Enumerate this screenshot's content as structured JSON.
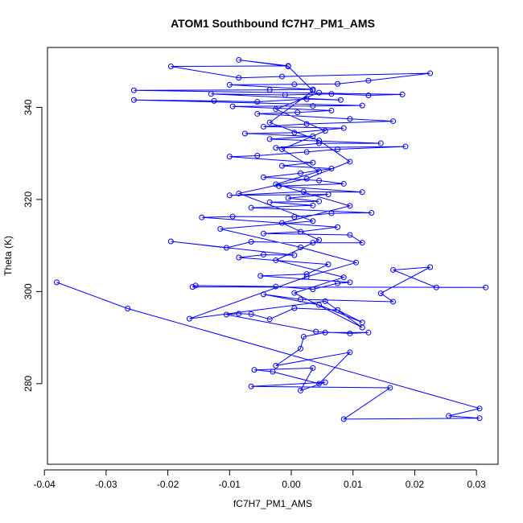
{
  "chart_data": {
    "type": "scatter",
    "title": "ATOM1 Southbound fC7H7_PM1_AMS",
    "xlabel": "fC7H7_PM1_AMS",
    "ylabel": "Theta (K)",
    "xlim": [
      -0.0395,
      0.0335
    ],
    "ylim": [
      262.5,
      353.0
    ],
    "x_ticks": [
      -0.04,
      -0.03,
      -0.02,
      -0.01,
      0.0,
      0.01,
      0.02,
      0.03
    ],
    "x_tick_labels": [
      "-0.04",
      "-0.03",
      "-0.02",
      "-0.01",
      "0.00",
      "0.01",
      "0.02",
      "0.03"
    ],
    "y_ticks": [
      280,
      300,
      320,
      340
    ],
    "y_tick_labels": [
      "280",
      "300",
      "320",
      "340"
    ],
    "grid": false,
    "legend": "none",
    "style": "points connected by lines (overplotted)",
    "color": "#0000ff",
    "series": [
      {
        "points": [
          [
            -0.038,
            302.0
          ],
          [
            -0.0265,
            296.3
          ],
          [
            0.0305,
            274.6
          ],
          [
            0.0255,
            273.0
          ],
          [
            0.0305,
            272.5
          ],
          [
            0.0085,
            272.3
          ],
          [
            0.016,
            279.1
          ],
          [
            -0.0065,
            279.4
          ],
          [
            0.0055,
            280.3
          ],
          [
            0.0015,
            278.5
          ],
          [
            0.0035,
            283.4
          ],
          [
            -0.006,
            283.0
          ],
          [
            -0.003,
            282.6
          ],
          [
            0.0045,
            280.0
          ],
          [
            0.0095,
            286.8
          ],
          [
            -0.0025,
            283.9
          ],
          [
            0.0015,
            287.6
          ],
          [
            0.002,
            290.2
          ],
          [
            0.0055,
            291.1
          ],
          [
            0.0125,
            291.1
          ],
          [
            0.0095,
            290.9
          ],
          [
            0.004,
            291.3
          ],
          [
            -0.0105,
            295.0
          ],
          [
            -0.0085,
            295.2
          ],
          [
            -0.0065,
            295.1
          ],
          [
            -0.0035,
            294.0
          ],
          [
            0.0005,
            296.4
          ],
          [
            0.0075,
            296.0
          ],
          [
            0.0115,
            293.3
          ],
          [
            0.0045,
            297.1
          ],
          [
            -0.0045,
            299.4
          ],
          [
            0.0015,
            298.3
          ],
          [
            0.0165,
            297.8
          ],
          [
            0.0145,
            299.6
          ],
          [
            0.0225,
            305.3
          ],
          [
            0.0165,
            304.7
          ],
          [
            0.0235,
            300.9
          ],
          [
            0.0315,
            300.9
          ],
          [
            -0.016,
            301.0
          ],
          [
            -0.0155,
            301.3
          ],
          [
            -0.0025,
            301.1
          ],
          [
            0.0035,
            300.5
          ],
          [
            0.0075,
            301.8
          ],
          [
            0.0095,
            302.0
          ],
          [
            -0.005,
            303.4
          ],
          [
            0.0025,
            303.8
          ],
          [
            0.006,
            305.9
          ],
          [
            -0.0085,
            307.4
          ],
          [
            -0.0045,
            308.0
          ],
          [
            0.0005,
            307.9
          ],
          [
            -0.0195,
            310.9
          ],
          [
            -0.0105,
            309.5
          ],
          [
            -0.0065,
            310.8
          ],
          [
            0.0035,
            310.6
          ],
          [
            0.0115,
            310.6
          ],
          [
            0.0095,
            312.3
          ],
          [
            -0.0045,
            312.6
          ],
          [
            0.0015,
            313.0
          ],
          [
            0.0075,
            314.0
          ],
          [
            -0.0145,
            316.1
          ],
          [
            -0.0095,
            316.3
          ],
          [
            0.0005,
            316.2
          ],
          [
            0.0065,
            317.0
          ],
          [
            0.013,
            317.1
          ],
          [
            -0.0065,
            318.2
          ],
          [
            0.0035,
            318.7
          ],
          [
            -0.0035,
            319.4
          ],
          [
            0.0045,
            319.6
          ],
          [
            -0.0005,
            320.3
          ],
          [
            0.006,
            321.1
          ],
          [
            -0.01,
            320.9
          ],
          [
            0.002,
            321.7
          ],
          [
            0.0115,
            321.6
          ],
          [
            -0.002,
            322.9
          ],
          [
            0.0085,
            323.4
          ],
          [
            0.0045,
            324.1
          ],
          [
            -0.0045,
            324.8
          ],
          [
            0.0015,
            325.7
          ],
          [
            0.0065,
            326.7
          ],
          [
            -0.0015,
            327.3
          ],
          [
            0.0035,
            328.0
          ],
          [
            -0.01,
            329.3
          ],
          [
            -0.0055,
            329.5
          ],
          [
            0.0025,
            330.3
          ],
          [
            0.0075,
            330.9
          ],
          [
            0.0185,
            331.5
          ],
          [
            -0.0025,
            331.2
          ],
          [
            0.0045,
            332.2
          ],
          [
            0.0145,
            332.2
          ],
          [
            -0.0035,
            333.1
          ],
          [
            0.0035,
            333.7
          ],
          [
            -0.0075,
            334.3
          ],
          [
            0.0005,
            334.5
          ],
          [
            0.0085,
            335.5
          ],
          [
            -0.0045,
            335.8
          ],
          [
            0.0025,
            336.4
          ],
          [
            0.0165,
            337.0
          ],
          [
            0.0095,
            337.5
          ],
          [
            -0.0055,
            338.6
          ],
          [
            0.001,
            338.9
          ],
          [
            0.0065,
            339.3
          ],
          [
            -0.0095,
            340.2
          ],
          [
            0.0035,
            340.3
          ],
          [
            0.0115,
            340.4
          ],
          [
            -0.0255,
            341.6
          ],
          [
            -0.0125,
            341.4
          ],
          [
            -0.0055,
            341.2
          ],
          [
            0.0025,
            341.8
          ],
          [
            0.008,
            341.6
          ],
          [
            -0.013,
            342.9
          ],
          [
            -0.001,
            342.7
          ],
          [
            0.0065,
            342.9
          ],
          [
            0.0125,
            342.6
          ],
          [
            0.018,
            342.8
          ],
          [
            -0.0255,
            343.7
          ],
          [
            -0.0035,
            343.8
          ],
          [
            0.0035,
            343.9
          ],
          [
            -0.01,
            344.9
          ],
          [
            0.0005,
            345.0
          ],
          [
            0.0075,
            345.1
          ],
          [
            0.0125,
            345.8
          ],
          [
            0.0225,
            347.4
          ],
          [
            -0.0015,
            346.7
          ],
          [
            -0.0085,
            346.4
          ],
          [
            -0.0195,
            348.9
          ],
          [
            -0.0005,
            349.0
          ],
          [
            -0.0085,
            350.3
          ],
          [
            -0.0005,
            348.9
          ],
          [
            0.0035,
            343.6
          ],
          [
            -0.0035,
            336.7
          ],
          [
            0.0045,
            332.8
          ],
          [
            0.0095,
            328.2
          ],
          [
            0.0025,
            324.5
          ],
          [
            -0.0085,
            321.3
          ],
          [
            0.0035,
            315.3
          ],
          [
            -0.0115,
            313.6
          ],
          [
            0.0015,
            309.6
          ],
          [
            0.0105,
            306.3
          ],
          [
            0.0025,
            303.2
          ],
          [
            -0.0165,
            294.1
          ],
          [
            0.0055,
            297.9
          ],
          [
            0.0115,
            292.2
          ],
          [
            0.0005,
            299.7
          ],
          [
            0.0085,
            303.1
          ],
          [
            -0.0025,
            306.8
          ],
          [
            0.0045,
            311.2
          ],
          [
            -0.0015,
            314.9
          ],
          [
            0.0095,
            318.6
          ],
          [
            -0.0025,
            323.3
          ],
          [
            0.0045,
            326.1
          ],
          [
            -0.0015,
            330.9
          ],
          [
            0.0055,
            334.9
          ],
          [
            -0.0025,
            339.6
          ],
          [
            0.0045,
            343.2
          ]
        ]
      }
    ]
  }
}
